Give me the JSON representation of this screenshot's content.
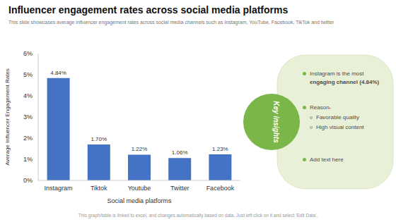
{
  "chart_data": {
    "type": "bar",
    "title": "Influencer engagement rates across social media platforms",
    "subtitle": "This slide showcases average influencer engagement rates across social media channels such as Instagram, YouTube, Facebook, TikTok and twitter",
    "footer": "This graph/table is linked to excel, and changes automatically based on data. Just left click on it and select 'Edit Data'.",
    "categories": [
      "Instagram",
      "Tiktok",
      "Youtube",
      "Twitter",
      "Facebook"
    ],
    "values": [
      4.84,
      1.7,
      1.22,
      1.06,
      1.23
    ],
    "value_labels": [
      "4.84%",
      "1.70%",
      "1.22%",
      "1.06%",
      "1.23%"
    ],
    "data_labels": true,
    "color": "#4472C4",
    "xlabel": "Social media platforms",
    "ylabel": "Average Influencer Engagement Rates",
    "ylim": [
      0,
      6
    ],
    "yticks": [
      {
        "value": 0,
        "label": "0%"
      },
      {
        "value": 1,
        "label": "1%"
      },
      {
        "value": 2,
        "label": "2%"
      },
      {
        "value": 3,
        "label": "3%"
      },
      {
        "value": 4,
        "label": "4%"
      },
      {
        "value": 5,
        "label": "5%"
      },
      {
        "value": 6,
        "label": "6%"
      }
    ],
    "grid": false,
    "annotations": [
      "Key insights",
      "Instagram  is the most",
      "engaging channel (4.84%)",
      "Reason-",
      "Favorable quality",
      "High visual content",
      "Add text here"
    ]
  }
}
